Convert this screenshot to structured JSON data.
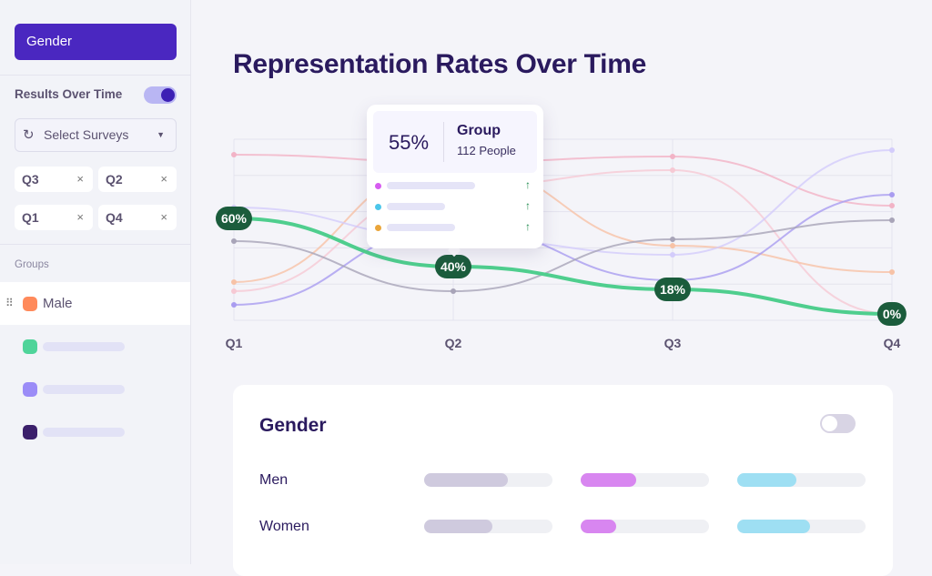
{
  "sidebar": {
    "category_button": "Gender",
    "results_over_time": {
      "label": "Results Over Time",
      "enabled": true
    },
    "select_surveys": {
      "label": "Select Surveys",
      "icon": "history-icon"
    },
    "chips": [
      {
        "label": "Q3"
      },
      {
        "label": "Q2"
      },
      {
        "label": "Q1"
      },
      {
        "label": "Q4"
      }
    ],
    "chip_remove": "×",
    "groups_label": "Groups",
    "groups": [
      {
        "label": "Male",
        "color": "#ff8a5b"
      },
      {
        "label": "",
        "color": "#4fd49a"
      },
      {
        "label": "",
        "color": "#9b8cf7"
      },
      {
        "label": "",
        "color": "#3b1f6b"
      }
    ]
  },
  "main": {
    "title": "Representation Rates Over Time"
  },
  "chart_data": {
    "type": "line",
    "categories": [
      "Q1",
      "Q2",
      "Q3",
      "Q4"
    ],
    "highlighted_series": {
      "color": "#4fce8e",
      "values": [
        60,
        40,
        18,
        0
      ],
      "labels": [
        "60%",
        "40%",
        "18%",
        "0%"
      ]
    },
    "background_series_colors": [
      "#f2b3c6",
      "#f6c9d4",
      "#f7c2a6",
      "#d3ccfb",
      "#a99cf0",
      "#a8a4b8"
    ],
    "grid": true
  },
  "tooltip": {
    "percent": "55%",
    "group": "Group",
    "people": "112 People",
    "rows": [
      {
        "color": "#d65cf0",
        "trend": "↑"
      },
      {
        "color": "#4cc6ea",
        "trend": "↑"
      },
      {
        "color": "#eaa53a",
        "trend": "↑"
      }
    ]
  },
  "card": {
    "title": "Gender",
    "toggle_enabled": false,
    "bar_colors": [
      "#cfcade",
      "#d886f0",
      "#9edff3"
    ],
    "rows": [
      {
        "label": "Men",
        "values": [
          0.65,
          0.43,
          0.46
        ]
      },
      {
        "label": "Women",
        "values": [
          0.53,
          0.28,
          0.57
        ]
      }
    ]
  }
}
